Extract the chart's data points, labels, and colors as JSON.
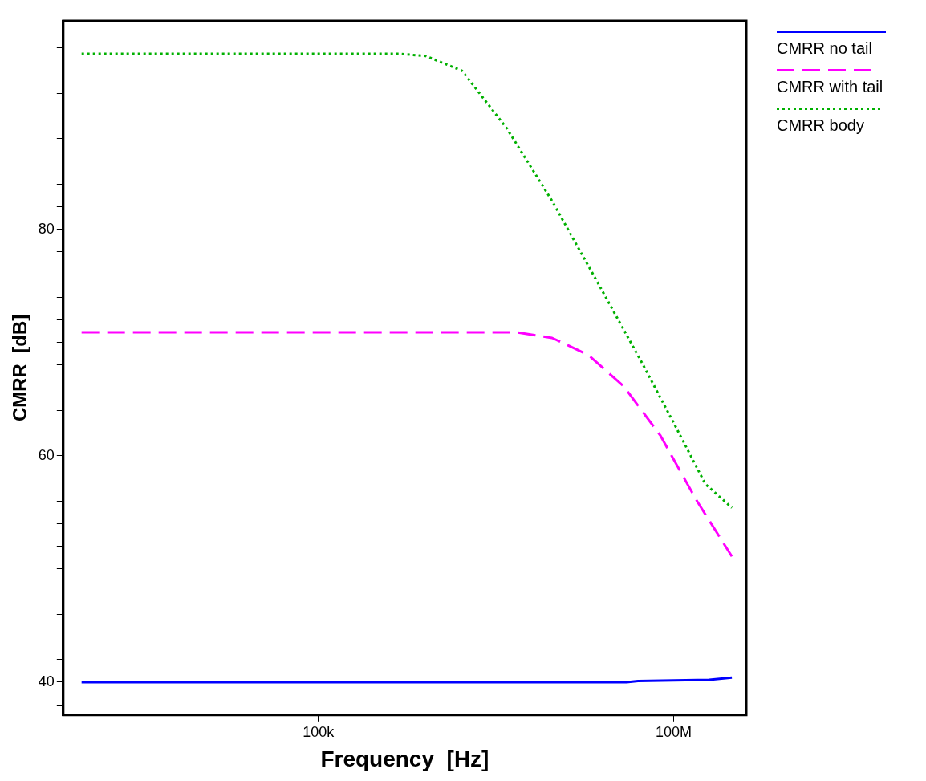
{
  "chart_data": {
    "type": "line",
    "xlabel": "Frequency  [Hz]",
    "ylabel": "CMRR  [dB]",
    "log": "x",
    "grid": false,
    "legend": "top right",
    "marker": "none",
    "xlim": [
      700,
      410000000
    ],
    "xticks": [
      {
        "value": 100000,
        "label": "100k"
      },
      {
        "value": 100000000,
        "label": "100M"
      }
    ],
    "ylim": [
      37.1,
      98.4
    ],
    "yticks": [
      {
        "value": 38,
        "label": null
      },
      40,
      {
        "value": 42,
        "label": null
      },
      {
        "value": 44,
        "label": null
      },
      {
        "value": 46,
        "label": null
      },
      {
        "value": 48,
        "label": null
      },
      {
        "value": 50,
        "label": null
      },
      {
        "value": 52,
        "label": null
      },
      {
        "value": 54,
        "label": null
      },
      {
        "value": 56,
        "label": null
      },
      {
        "value": 58,
        "label": null
      },
      60,
      {
        "value": 62,
        "label": null
      },
      {
        "value": 64,
        "label": null
      },
      {
        "value": 66,
        "label": null
      },
      {
        "value": 68,
        "label": null
      },
      {
        "value": 70,
        "label": null
      },
      {
        "value": 72,
        "label": null
      },
      {
        "value": 74,
        "label": null
      },
      {
        "value": 76,
        "label": null
      },
      {
        "value": 78,
        "label": null
      },
      80,
      {
        "value": 82,
        "label": null
      },
      {
        "value": 84,
        "label": null
      },
      {
        "value": 86,
        "label": null
      },
      {
        "value": 88,
        "label": null
      },
      {
        "value": 90,
        "label": null
      },
      {
        "value": 92,
        "label": null
      },
      {
        "value": 94,
        "label": null
      },
      {
        "value": 96,
        "label": null
      }
    ],
    "series": [
      {
        "name": "CMRR no tail",
        "color": "#0000ff",
        "line_style": "solid",
        "x": [
          1000,
          40000000,
          50000000,
          200000000,
          310000000
        ],
        "values": [
          40,
          40,
          40.1,
          40.2,
          40.4
        ]
      },
      {
        "name": "CMRR with tail",
        "color": "#ff00ff",
        "line_style": "dashed",
        "x": [
          1000,
          4700000,
          9400000,
          19000000,
          38000000,
          77000000,
          155000000,
          310000000
        ],
        "values": [
          70.9,
          70.9,
          70.4,
          68.9,
          66.1,
          61.8,
          56.1,
          51.1
        ]
      },
      {
        "name": "CMRR body",
        "color": "#00b000",
        "line_style": "dotted",
        "x": [
          1000,
          476000,
          805000,
          1630000,
          3900000,
          9400000,
          22500000,
          54000000,
          100000000,
          185000000,
          310000000
        ],
        "values": [
          95.5,
          95.5,
          95.3,
          94,
          88.9,
          82.5,
          75.4,
          68.2,
          62.9,
          57.5,
          55.4
        ]
      }
    ]
  }
}
